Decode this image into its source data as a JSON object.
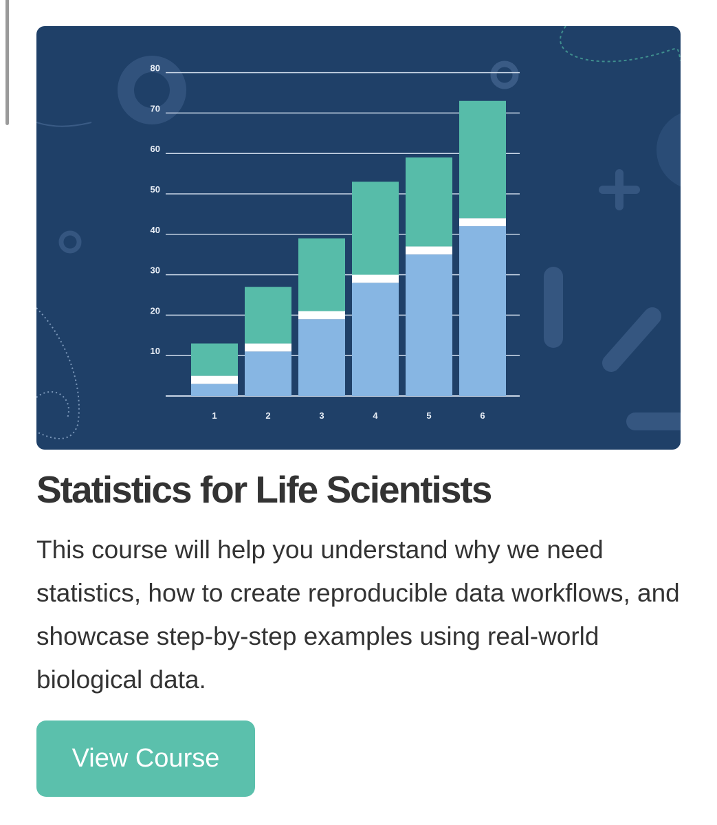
{
  "course": {
    "title": "Statistics for Life Scientists",
    "description": "This course will help you understand why we need statistics, how to create reproducible data workflows, and showcase step-by-step examples using real-world biological data.",
    "button_label": "View Course"
  },
  "colors": {
    "background": "#1f4068",
    "bar_bottom": "#87b6e3",
    "bar_top": "#57bca9",
    "separator": "#ffffff",
    "button": "#5bc0ac",
    "text": "#333333"
  },
  "chart_data": {
    "type": "bar",
    "stacked": true,
    "categories": [
      "1",
      "2",
      "3",
      "4",
      "5",
      "6"
    ],
    "series": [
      {
        "values": [
          3,
          11,
          19,
          28,
          35,
          42
        ]
      },
      {
        "values": [
          2,
          2,
          2,
          2,
          2,
          2
        ]
      },
      {
        "values": [
          8,
          14,
          18,
          23,
          22,
          29
        ]
      }
    ],
    "totals": [
      13,
      27,
      39,
      53,
      59,
      73
    ],
    "y_ticks": [
      10,
      20,
      30,
      40,
      50,
      60,
      70,
      80
    ],
    "ylim": [
      0,
      80
    ],
    "grid": true,
    "title": "",
    "xlabel": "",
    "ylabel": ""
  }
}
